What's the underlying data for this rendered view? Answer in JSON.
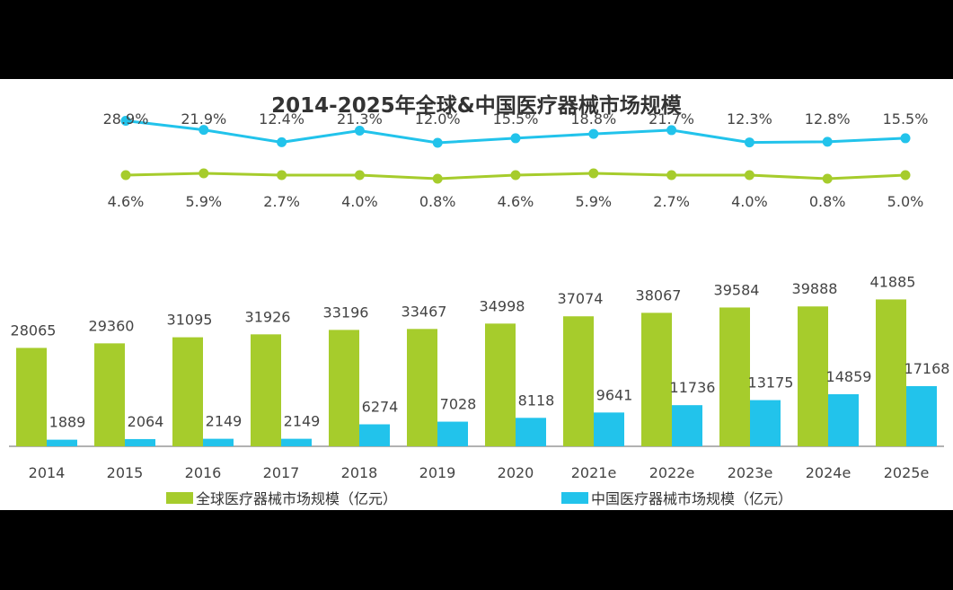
{
  "colors": {
    "global": "#a6cc2c",
    "china": "#22c3eb",
    "axis": "#666666",
    "text": "#444444"
  },
  "chart_data": {
    "type": "bar",
    "title": "2014-2025年全球&中国医疗器械市场规模",
    "categories": [
      "2014",
      "2015",
      "2016",
      "2017",
      "2018",
      "2019",
      "2020",
      "2021e",
      "2022e",
      "2023e",
      "2024e",
      "2025e"
    ],
    "series": [
      {
        "name": "全球医疗器械市场规模（亿元）",
        "values": [
          28065,
          29360,
          31095,
          31926,
          33196,
          33467,
          34998,
          37074,
          38067,
          39584,
          39888,
          41885
        ]
      },
      {
        "name": "中国医疗器械市场规模（亿元）",
        "values": [
          1889,
          2064,
          2149,
          2149,
          6274,
          7028,
          8118,
          9641,
          11736,
          13175,
          14859,
          17168
        ]
      }
    ],
    "growth_lines": [
      {
        "labels": [
          "28.9%",
          "21.9%",
          "12.4%",
          "21.3%",
          "12.0%",
          "15.5%",
          "18.8%",
          "21.7%",
          "12.3%",
          "12.8%",
          "15.5%"
        ],
        "values": [
          28.9,
          21.9,
          12.4,
          21.3,
          12.0,
          15.5,
          18.8,
          21.7,
          12.3,
          12.8,
          15.5
        ]
      },
      {
        "labels": [
          "4.6%",
          "5.9%",
          "2.7%",
          "4.0%",
          "0.8%",
          "4.6%",
          "5.9%",
          "2.7%",
          "4.0%",
          "0.8%",
          "5.0%"
        ],
        "values": [
          4.6,
          5.9,
          2.7,
          4.0,
          0.8,
          4.6,
          5.9,
          2.7,
          4.0,
          0.8,
          5.0
        ]
      }
    ],
    "legend": [
      "全球医疗器械市场规模（亿元）",
      "中国医疗器械市场规模（亿元）"
    ]
  }
}
